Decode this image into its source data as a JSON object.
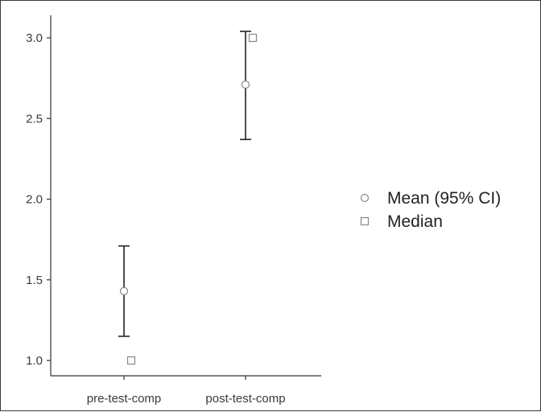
{
  "chart_data": {
    "type": "scatter",
    "title": "",
    "xlabel": "",
    "ylabel": "",
    "categories": [
      "pre-test-comp",
      "post-test-comp"
    ],
    "ylim": [
      0.9,
      3.15
    ],
    "yticks": [
      "1.0",
      "1.5",
      "2.0",
      "2.5",
      "3.0"
    ],
    "grid": false,
    "legend_position": "right",
    "series": [
      {
        "name": "Mean (95% CI)",
        "marker": "circle",
        "values": [
          1.43,
          2.71
        ],
        "ci_lower": [
          1.15,
          2.37
        ],
        "ci_upper": [
          1.71,
          3.04
        ]
      },
      {
        "name": "Median",
        "marker": "square",
        "values": [
          1.0,
          3.0
        ]
      }
    ],
    "colors": {
      "axis": "#333333",
      "marker_fill": "#ffffff",
      "marker_stroke": "#888888",
      "errorbar": "#222222"
    }
  }
}
